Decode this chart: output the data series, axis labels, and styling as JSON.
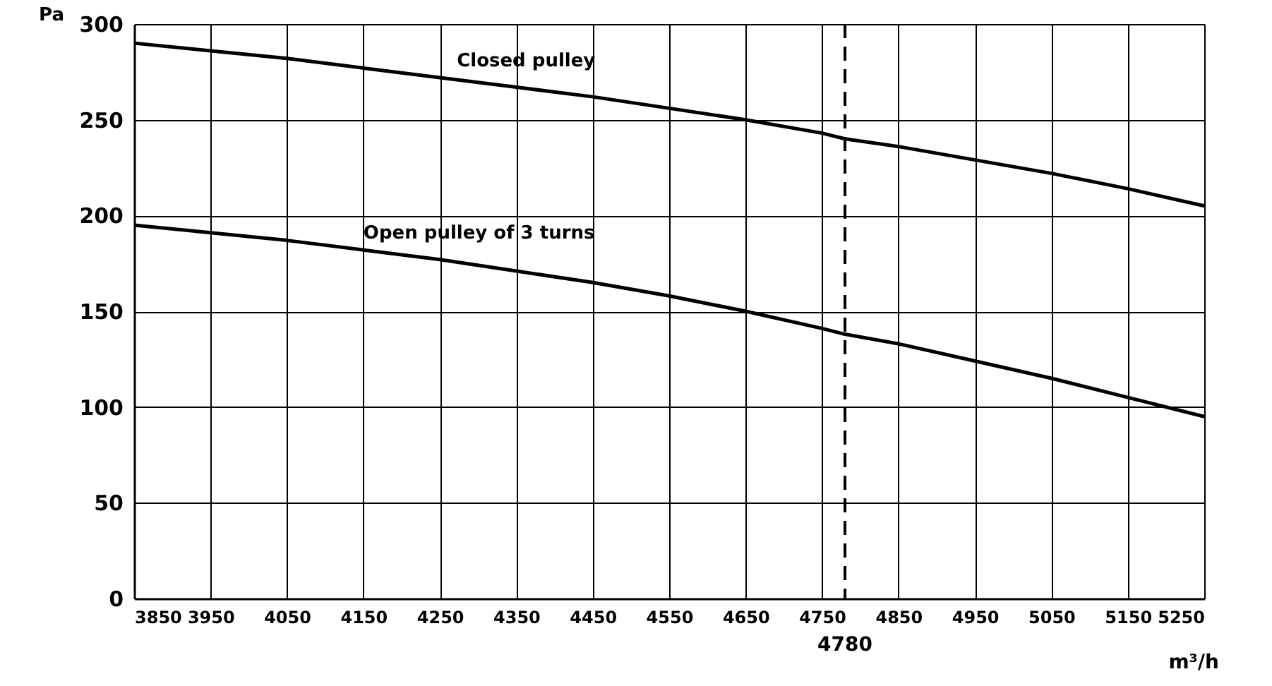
{
  "chart_data": {
    "type": "line",
    "xlabel": "m³/h",
    "ylabel": "Pa",
    "x": [
      3850,
      3950,
      4050,
      4150,
      4250,
      4350,
      4450,
      4550,
      4650,
      4750,
      4780,
      4850,
      4950,
      5050,
      5150,
      5250
    ],
    "series": [
      {
        "name": "Closed pulley",
        "color": "#000000",
        "values": [
          290,
          286,
          282,
          277,
          272,
          267,
          262,
          256,
          250,
          243,
          240,
          236,
          229,
          222,
          214,
          205
        ]
      },
      {
        "name": "Open pulley of 3 turns",
        "color": "#000000",
        "values": [
          195,
          191,
          187,
          182,
          177,
          171,
          165,
          158,
          150,
          141,
          138,
          133,
          124,
          115,
          105,
          95
        ]
      }
    ],
    "xlim": [
      3850,
      5250
    ],
    "xticks": [
      3850,
      3950,
      4050,
      4150,
      4250,
      4350,
      4450,
      4550,
      4650,
      4750,
      4850,
      4950,
      5050,
      5150,
      5250
    ],
    "ylim": [
      0,
      300
    ],
    "yticks": [
      0,
      50,
      100,
      150,
      200,
      250,
      300
    ],
    "ref_lines": [
      {
        "axis": "x",
        "value": 4780,
        "label": "4780",
        "color": "#000000",
        "line_style": "dashed"
      }
    ],
    "grid": true,
    "marker": "none",
    "line_style": "solid"
  }
}
